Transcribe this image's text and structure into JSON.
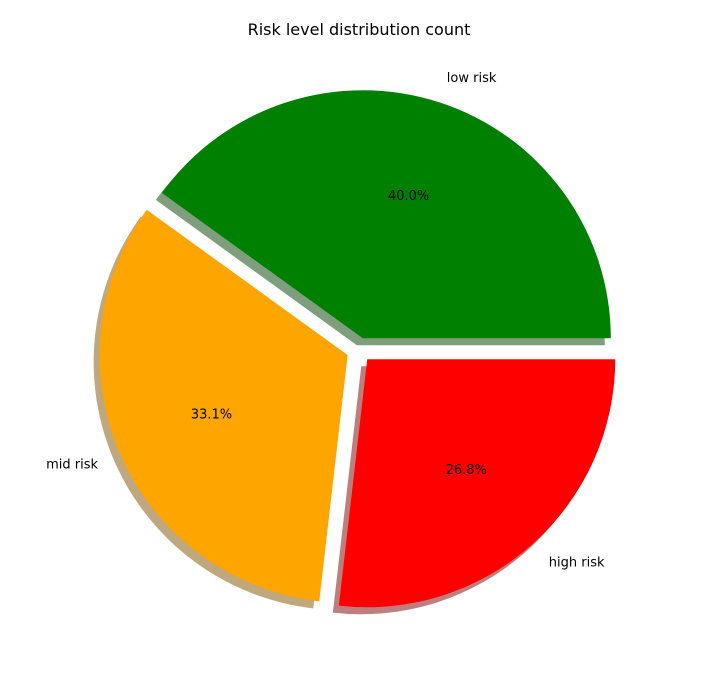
{
  "chart_data": {
    "type": "pie",
    "title": "Risk level distribution count",
    "categories": [
      "low risk",
      "mid risk",
      "high risk"
    ],
    "values": [
      40.0,
      33.1,
      26.8
    ],
    "percent_labels": [
      "40.0%",
      "33.1%",
      "26.8%"
    ],
    "colors": [
      "#008000",
      "#ffa500",
      "#ff0000"
    ],
    "start_angle_deg": 0,
    "direction": "counterclockwise",
    "exploded": true,
    "shadow": true,
    "legend": "none"
  }
}
